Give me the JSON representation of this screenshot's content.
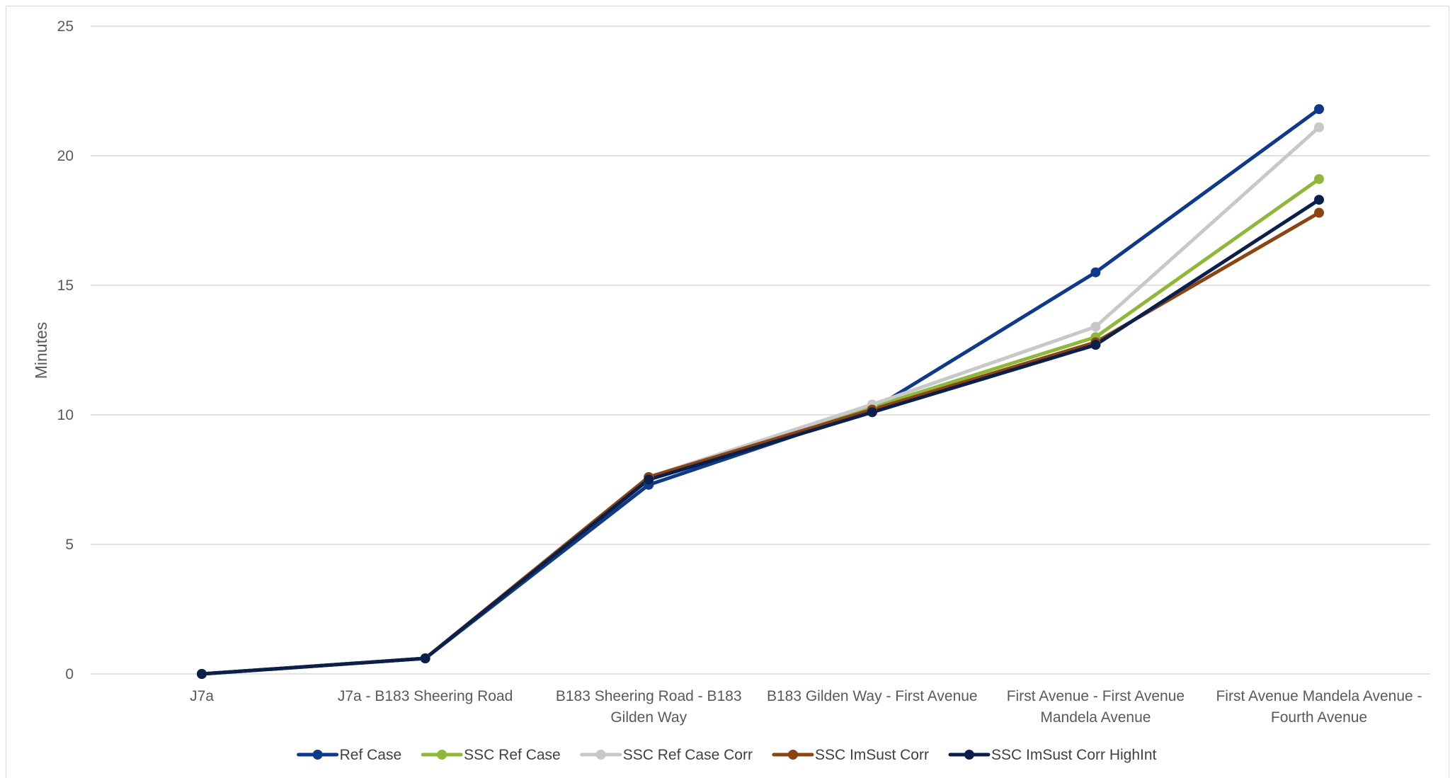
{
  "chart_data": {
    "type": "line",
    "title": "",
    "xlabel": "",
    "ylabel": "Minutes",
    "ylim": [
      0,
      25
    ],
    "yticks": [
      0,
      5,
      10,
      15,
      20,
      25
    ],
    "grid": true,
    "legend_position": "bottom",
    "categories": [
      [
        "J7a"
      ],
      [
        "J7a - B183 Sheering Road"
      ],
      [
        "B183 Sheering Road - B183",
        "Gilden Way"
      ],
      [
        "B183 Gilden Way - First Avenue"
      ],
      [
        "First Avenue - First Avenue",
        "Mandela Avenue"
      ],
      [
        "First Avenue Mandela Avenue -",
        "Fourth Avenue"
      ]
    ],
    "series": [
      {
        "name": "Ref Case",
        "color": "#0e3a8c",
        "values": [
          0,
          0.6,
          7.3,
          10.2,
          15.5,
          21.8
        ]
      },
      {
        "name": "SSC Ref Case",
        "color": "#8fb83a",
        "values": [
          0,
          0.6,
          7.5,
          10.3,
          13.0,
          19.1
        ]
      },
      {
        "name": "SSC Ref Case Corr",
        "color": "#c8c8c8",
        "values": [
          0,
          0.6,
          7.6,
          10.4,
          13.4,
          21.1
        ]
      },
      {
        "name": "SSC ImSust Corr",
        "color": "#8b4513",
        "values": [
          0,
          0.6,
          7.6,
          10.2,
          12.8,
          17.8
        ]
      },
      {
        "name": "SSC ImSust Corr HighInt",
        "color": "#0b1f4d",
        "values": [
          0,
          0.6,
          7.5,
          10.1,
          12.7,
          18.3
        ]
      }
    ]
  }
}
